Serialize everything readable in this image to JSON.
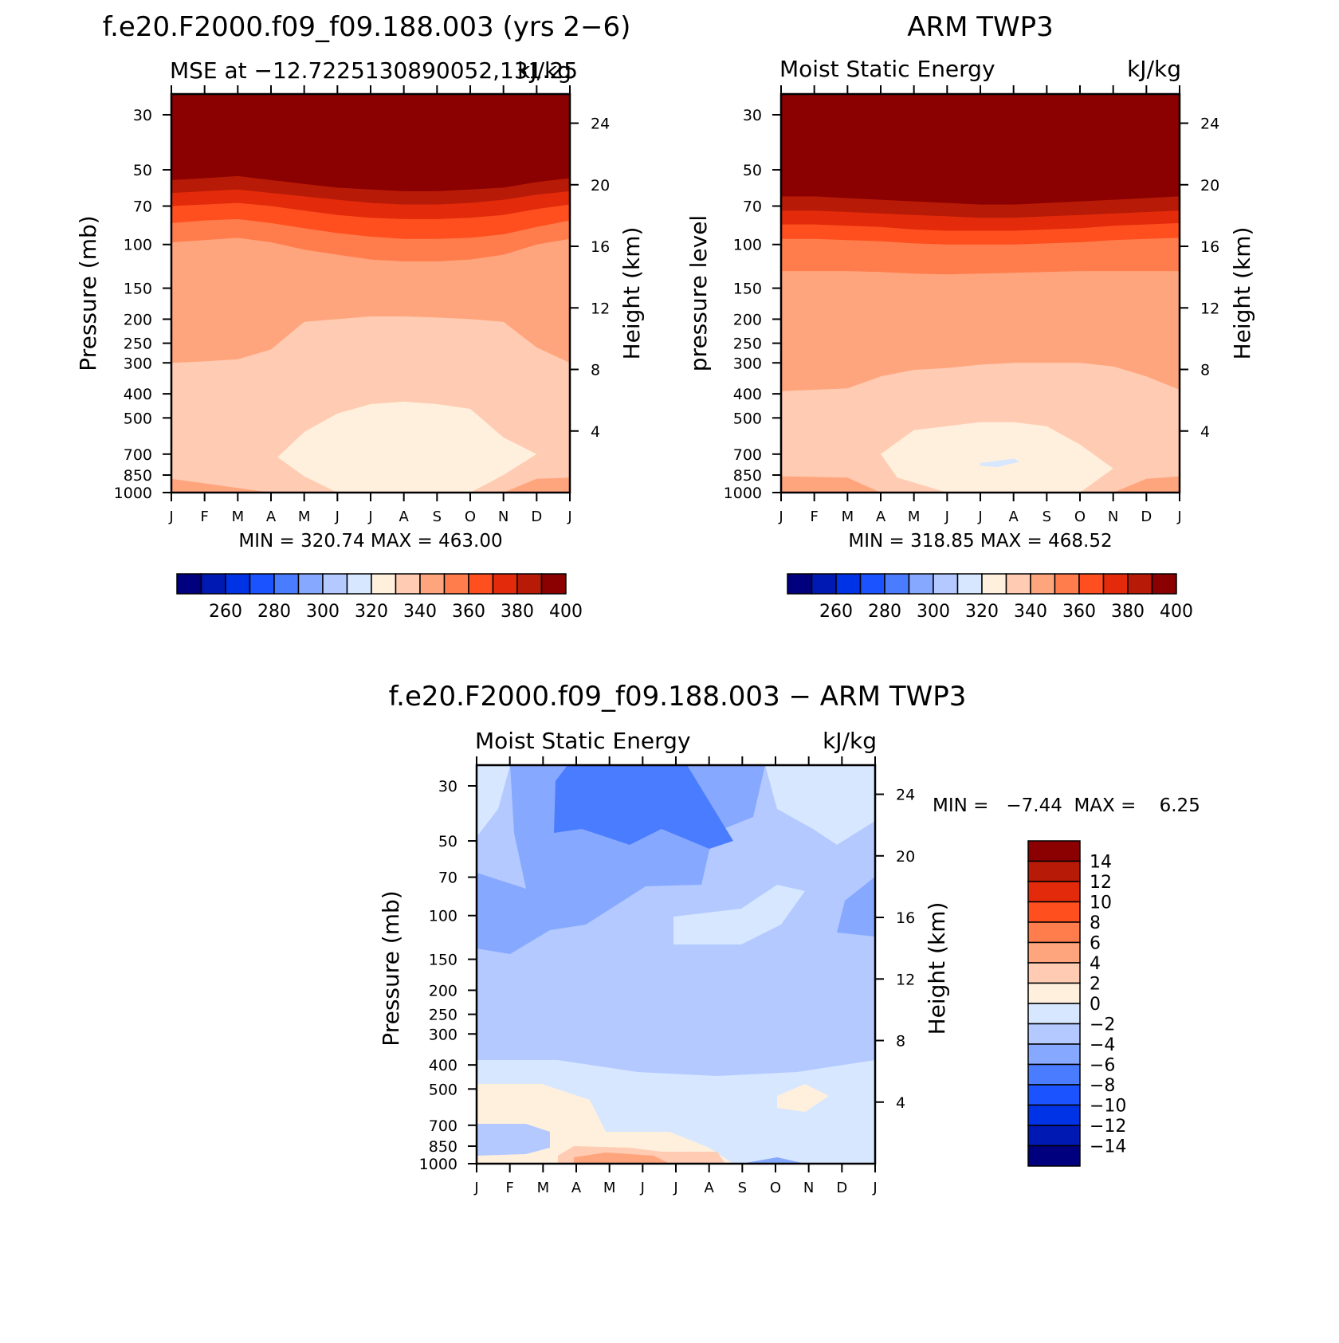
{
  "chart_data": [
    {
      "type": "heatmap",
      "title": "f.e20.F2000.f09_f09.188.003 (yrs 2−6)",
      "subtitle_left": "MSE at −12.7225130890052,131.25",
      "subtitle_right": "kJ/kg",
      "ylabel": "Pressure (mb)",
      "ylabel_right": "Height (km)",
      "x_ticks": [
        "J",
        "F",
        "M",
        "A",
        "M",
        "J",
        "J",
        "A",
        "S",
        "O",
        "N",
        "D",
        "J"
      ],
      "y_ticks": [
        "30",
        "50",
        "70",
        "100",
        "150",
        "200",
        "250",
        "300",
        "400",
        "500",
        "700",
        "850",
        "1000"
      ],
      "y_ticks_right": [
        "24",
        "20",
        "16",
        "12",
        "8",
        "4"
      ],
      "stats": "MIN = 320.74  MAX = 463.00",
      "colorbar_labels": [
        "260",
        "280",
        "300",
        "320",
        "340",
        "360",
        "380",
        "400"
      ],
      "layers": [
        {
          "value": 340,
          "top": [
            300,
            296,
            290,
            265,
            205,
            200,
            195,
            195,
            197,
            200,
            205,
            260,
            300
          ]
        },
        {
          "value": 350,
          "top": [
            98,
            96,
            94,
            98,
            105,
            110,
            115,
            117,
            117,
            115,
            110,
            100,
            95
          ]
        },
        {
          "value": 360,
          "top": [
            82,
            80,
            79,
            82,
            86,
            90,
            93,
            95,
            95,
            94,
            91,
            85,
            80
          ]
        },
        {
          "value": 370,
          "top": [
            70,
            69,
            68,
            70,
            73,
            76,
            78,
            79,
            79,
            78,
            76,
            72,
            69
          ]
        },
        {
          "value": 380,
          "top": [
            62,
            61,
            60,
            62,
            64,
            66,
            68,
            69,
            69,
            68,
            66,
            63,
            61
          ]
        },
        {
          "value": 390,
          "top": [
            55,
            54,
            53,
            55,
            57,
            59,
            60,
            61,
            61,
            60,
            59,
            56,
            54
          ]
        },
        {
          "value": 400,
          "top": [
            50,
            49,
            48,
            50,
            52,
            53,
            54,
            55,
            55,
            54,
            53,
            51,
            49
          ]
        }
      ],
      "min_region": {
        "value": 330,
        "outline": [
          [
            3.2,
            720
          ],
          [
            4,
            570
          ],
          [
            5,
            480
          ],
          [
            6,
            440
          ],
          [
            7,
            430
          ],
          [
            8,
            440
          ],
          [
            9,
            460
          ],
          [
            10,
            600
          ],
          [
            11,
            700
          ],
          [
            10,
            850
          ],
          [
            9,
            1000
          ],
          [
            5,
            1000
          ],
          [
            4,
            860
          ]
        ]
      },
      "surface_region": {
        "value": 340,
        "left": [
          [
            0,
            880
          ],
          [
            3,
            1000
          ],
          [
            0,
            1000
          ]
        ],
        "right": [
          [
            10,
            1000
          ],
          [
            11,
            880
          ],
          [
            12,
            870
          ],
          [
            12,
            1000
          ]
        ]
      }
    },
    {
      "type": "heatmap",
      "title": "ARM TWP3",
      "subtitle_left": "Moist Static Energy",
      "subtitle_right": "kJ/kg",
      "ylabel": "pressure level",
      "ylabel_right": "Height (km)",
      "x_ticks": [
        "J",
        "F",
        "M",
        "A",
        "M",
        "J",
        "J",
        "A",
        "S",
        "O",
        "N",
        "D",
        "J"
      ],
      "y_ticks": [
        "30",
        "50",
        "70",
        "100",
        "150",
        "200",
        "250",
        "300",
        "400",
        "500",
        "700",
        "850",
        "1000"
      ],
      "y_ticks_right": [
        "24",
        "20",
        "16",
        "12",
        "8",
        "4"
      ],
      "stats": "MIN = 318.85  MAX = 468.52",
      "colorbar_labels": [
        "260",
        "280",
        "300",
        "320",
        "340",
        "360",
        "380",
        "400"
      ],
      "layers": [
        {
          "value": 340,
          "top": [
            390,
            385,
            380,
            340,
            320,
            315,
            305,
            300,
            300,
            300,
            310,
            340,
            385
          ]
        },
        {
          "value": 350,
          "top": [
            128,
            128,
            128,
            129,
            131,
            132,
            131,
            130,
            129,
            128,
            128,
            128,
            128
          ]
        },
        {
          "value": 360,
          "top": [
            95,
            95,
            96,
            97,
            99,
            100,
            100,
            100,
            99,
            98,
            96,
            95,
            94
          ]
        },
        {
          "value": 370,
          "top": [
            83,
            83,
            84,
            85,
            87,
            88,
            88,
            88,
            87,
            86,
            84,
            83,
            82
          ]
        },
        {
          "value": 380,
          "top": [
            73,
            73,
            74,
            75,
            76,
            77,
            78,
            78,
            77,
            76,
            75,
            74,
            73
          ]
        },
        {
          "value": 390,
          "top": [
            64,
            64,
            65,
            66,
            67,
            68,
            69,
            69,
            68,
            67,
            66,
            65,
            64
          ]
        },
        {
          "value": 400,
          "top": [
            57,
            57,
            58,
            59,
            60,
            61,
            61,
            61,
            60,
            59,
            58,
            57,
            57
          ]
        }
      ],
      "min_region": {
        "value": 330,
        "outline": [
          [
            3,
            700
          ],
          [
            4,
            560
          ],
          [
            6,
            520
          ],
          [
            7,
            520
          ],
          [
            8,
            540
          ],
          [
            9,
            640
          ],
          [
            10,
            800
          ],
          [
            9,
            1000
          ],
          [
            5,
            1000
          ],
          [
            3.5,
            870
          ]
        ]
      },
      "inner_region": {
        "value": 320,
        "outline": [
          [
            6,
            760
          ],
          [
            7,
            730
          ],
          [
            7.2,
            750
          ],
          [
            6.5,
            790
          ],
          [
            6,
            780
          ]
        ]
      },
      "surface_region": {
        "value": 340,
        "left": [
          [
            0,
            860
          ],
          [
            2,
            870
          ],
          [
            3,
            1000
          ],
          [
            0,
            1000
          ]
        ],
        "right": [
          [
            10,
            1000
          ],
          [
            11,
            880
          ],
          [
            12,
            860
          ],
          [
            12,
            1000
          ]
        ]
      }
    },
    {
      "type": "heatmap",
      "title": "f.e20.F2000.f09_f09.188.003 − ARM TWP3",
      "subtitle_left": "Moist Static Energy",
      "subtitle_right": "kJ/kg",
      "ylabel": "Pressure (mb)",
      "ylabel_right": "Height (km)",
      "x_ticks": [
        "J",
        "F",
        "M",
        "A",
        "M",
        "J",
        "J",
        "A",
        "S",
        "O",
        "N",
        "D",
        "J"
      ],
      "y_ticks": [
        "30",
        "50",
        "70",
        "100",
        "150",
        "200",
        "250",
        "300",
        "400",
        "500",
        "700",
        "850",
        "1000"
      ],
      "y_ticks_right": [
        "24",
        "20",
        "16",
        "12",
        "8",
        "4"
      ],
      "stats": "MIN =   −7.44  MAX =    6.25",
      "colorbar_labels": [
        "14",
        "12",
        "10",
        "8",
        "6",
        "4",
        "2",
        "0",
        "−2",
        "−4",
        "−6",
        "−8",
        "−10",
        "−12",
        "−14"
      ]
    }
  ],
  "colors": {
    "scale": [
      "#00007f",
      "#0019b3",
      "#0033e6",
      "#1a53ff",
      "#4a7cff",
      "#86a8ff",
      "#b3c9ff",
      "#d6e7ff",
      "#fff0dd",
      "#ffcbb2",
      "#ffa57d",
      "#ff7d4d",
      "#ff4f1f",
      "#e32b0b",
      "#b71a06",
      "#8b0000"
    ]
  }
}
